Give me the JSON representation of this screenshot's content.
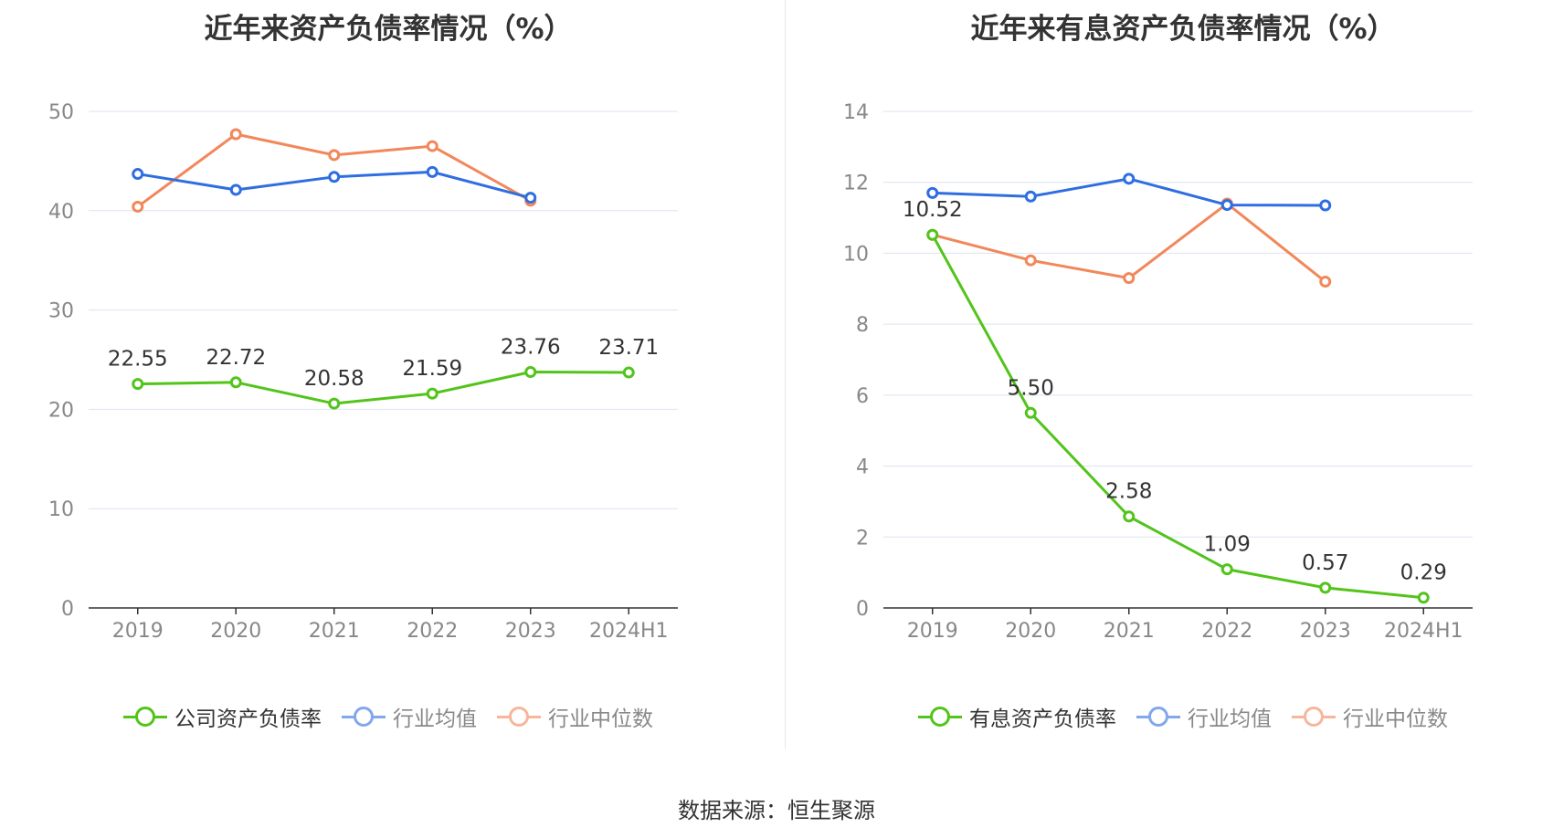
{
  "source": "数据来源：恒生聚源",
  "colors": {
    "company": "#52c41a",
    "avg": "#2f6ee0",
    "median": "#f2875a",
    "grid": "#dce3ef",
    "axis": "#333333",
    "tick": "#888888"
  },
  "chart_data": [
    {
      "type": "line",
      "title": "近年来资产负债率情况（%）",
      "categories": [
        "2019",
        "2020",
        "2021",
        "2022",
        "2023",
        "2024H1"
      ],
      "ylim": [
        0,
        50
      ],
      "yticks": [
        0,
        10,
        20,
        30,
        40,
        50
      ],
      "series": [
        {
          "name": "公司资产负债率",
          "color": "#52c41a",
          "labels": true,
          "values": [
            22.55,
            22.72,
            20.58,
            21.59,
            23.76,
            23.71
          ],
          "value_labels": [
            "22.55",
            "22.72",
            "20.58",
            "21.59",
            "23.76",
            "23.71"
          ]
        },
        {
          "name": "行业均值",
          "color": "#2f6ee0",
          "labels": false,
          "values": [
            43.7,
            42.1,
            43.4,
            43.9,
            41.3,
            null
          ]
        },
        {
          "name": "行业中位数",
          "color": "#f2875a",
          "labels": false,
          "values": [
            40.4,
            47.7,
            45.6,
            46.5,
            41.0,
            null
          ]
        }
      ]
    },
    {
      "type": "line",
      "title": "近年来有息资产负债率情况（%）",
      "categories": [
        "2019",
        "2020",
        "2021",
        "2022",
        "2023",
        "2024H1"
      ],
      "ylim": [
        0,
        14
      ],
      "yticks": [
        0,
        2,
        4,
        6,
        8,
        10,
        12,
        14
      ],
      "series": [
        {
          "name": "有息资产负债率",
          "color": "#52c41a",
          "labels": true,
          "values": [
            10.52,
            5.5,
            2.58,
            1.09,
            0.57,
            0.29
          ],
          "value_labels": [
            "10.52",
            "5.50",
            "2.58",
            "1.09",
            "0.57",
            "0.29"
          ]
        },
        {
          "name": "行业均值",
          "color": "#2f6ee0",
          "labels": false,
          "values": [
            11.7,
            11.6,
            12.1,
            11.36,
            11.35,
            null
          ]
        },
        {
          "name": "行业中位数",
          "color": "#f2875a",
          "labels": false,
          "values": [
            10.52,
            9.8,
            9.3,
            11.4,
            9.2,
            null
          ]
        }
      ]
    }
  ]
}
